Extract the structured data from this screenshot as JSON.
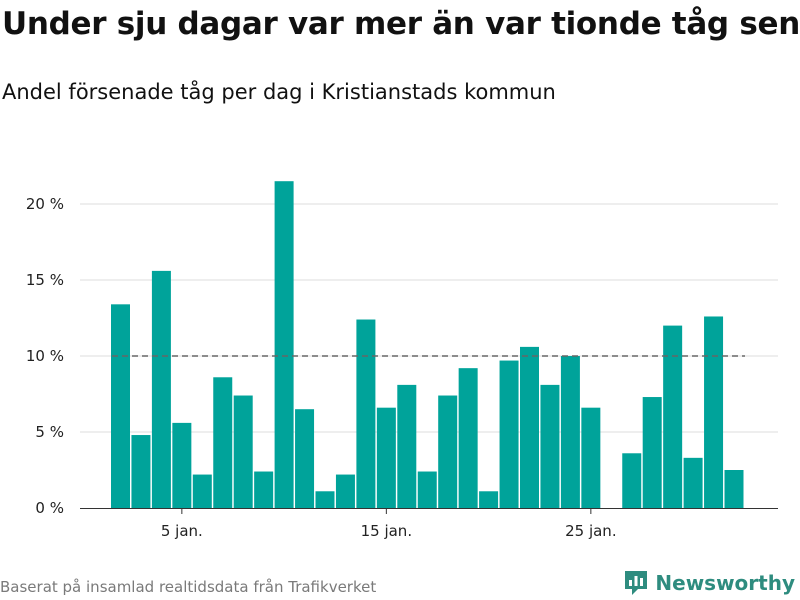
{
  "header": {
    "title": "Under sju dagar var mer än var tionde tåg sent",
    "subtitle": "Andel försenade tåg per dag i Kristianstads kommun"
  },
  "footer": {
    "source": "Baserat på insamlad realtidsdata från Trafikverket",
    "brand": "Newsworthy"
  },
  "colors": {
    "bar": "#00a39a",
    "grid": "#dddddd",
    "reference": "#666666",
    "brand": "#2e8c7f"
  },
  "chart_data": {
    "type": "bar",
    "title": "Under sju dagar var mer än var tionde tåg sent",
    "subtitle": "Andel försenade tåg per dag i Kristianstads kommun",
    "x": [
      2,
      3,
      4,
      5,
      6,
      7,
      8,
      9,
      10,
      11,
      12,
      13,
      14,
      15,
      16,
      17,
      18,
      19,
      20,
      21,
      22,
      23,
      24,
      25,
      26,
      27,
      28,
      29,
      30,
      31,
      32
    ],
    "values": [
      13.4,
      4.8,
      15.6,
      5.6,
      2.2,
      8.6,
      7.4,
      2.4,
      21.5,
      6.5,
      1.1,
      2.2,
      12.4,
      6.6,
      8.1,
      2.4,
      7.4,
      9.2,
      1.1,
      9.7,
      10.6,
      8.1,
      10.0,
      6.6,
      0,
      3.6,
      7.3,
      12.0,
      3.3,
      12.6,
      2.5
    ],
    "x_ticks": [
      {
        "x": 5,
        "label": "5 jan."
      },
      {
        "x": 15,
        "label": "15 jan."
      },
      {
        "x": 25,
        "label": "25 jan."
      }
    ],
    "y_ticks": [
      {
        "value": 0,
        "label": "0 %"
      },
      {
        "value": 5,
        "label": "5 %"
      },
      {
        "value": 10,
        "label": "10 %"
      },
      {
        "value": 15,
        "label": "15 %"
      },
      {
        "value": 20,
        "label": "20 %"
      }
    ],
    "ylim": [
      0,
      22
    ],
    "reference_line": 10,
    "grid": true,
    "xlabel": "",
    "ylabel": ""
  }
}
